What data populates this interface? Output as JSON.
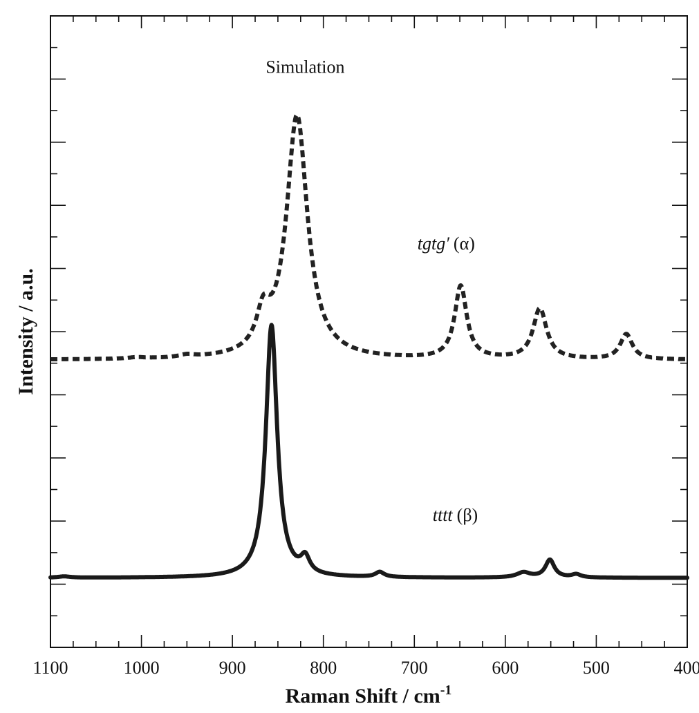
{
  "chart_data": {
    "type": "line",
    "title": "",
    "xlabel": "Raman Shift / cm",
    "xlabel_sup": "-1",
    "ylabel": "Intensity / a.u.",
    "xlim": [
      1100,
      400
    ],
    "x_reversed": true,
    "ylim": [
      0,
      10
    ],
    "y_ticklabels_shown": false,
    "x_ticks": [
      1100,
      1000,
      900,
      800,
      700,
      600,
      500,
      400
    ],
    "x_ticklabels": [
      "1100",
      "1000",
      "900",
      "800",
      "700",
      "600",
      "500",
      "400"
    ],
    "grid": false,
    "legend": "none",
    "annotations": [
      {
        "text": "Simulation",
        "x": 820,
        "y": 9.1
      },
      {
        "text_italic": "tgtg′",
        "text": "(α)",
        "x": 665,
        "y": 6.3
      },
      {
        "text_italic": "tttt",
        "text": "(β)",
        "x": 655,
        "y": 2.0
      }
    ],
    "series": [
      {
        "style": "dashed",
        "color": "#222222",
        "baseline": 4.55,
        "peaks": [
          {
            "center": 829,
            "height": 3.85,
            "width": 14
          },
          {
            "center": 866,
            "height": 0.55,
            "width": 9
          },
          {
            "center": 649,
            "height": 1.15,
            "width": 8
          },
          {
            "center": 562,
            "height": 0.8,
            "width": 9
          },
          {
            "center": 467,
            "height": 0.4,
            "width": 8
          },
          {
            "center": 950,
            "height": 0.04,
            "width": 10
          },
          {
            "center": 1005,
            "height": 0.02,
            "width": 10
          }
        ]
      },
      {
        "style": "solid",
        "color": "#1a1a1a",
        "baseline": 1.1,
        "peaks": [
          {
            "center": 857,
            "height": 4.0,
            "width": 7.5
          },
          {
            "center": 820,
            "height": 0.25,
            "width": 6
          },
          {
            "center": 738,
            "height": 0.08,
            "width": 6
          },
          {
            "center": 580,
            "height": 0.08,
            "width": 9
          },
          {
            "center": 551,
            "height": 0.28,
            "width": 6
          },
          {
            "center": 522,
            "height": 0.05,
            "width": 6
          },
          {
            "center": 1085,
            "height": 0.02,
            "width": 8
          }
        ]
      }
    ]
  }
}
